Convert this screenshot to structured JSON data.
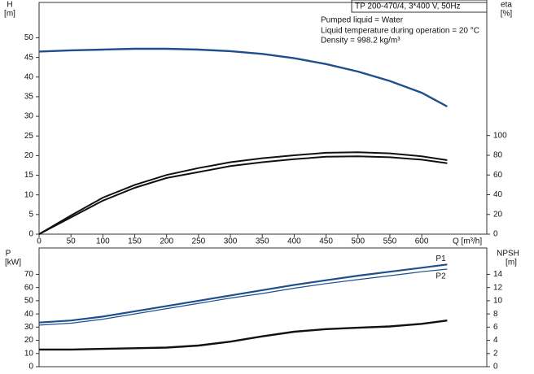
{
  "chart_data": [
    {
      "type": "line",
      "title": "TP 200-470/4, 3*400 V, 50Hz",
      "annotations": [
        "Pumped liquid = Water",
        "Liquid temperature during operation = 20 °C",
        "Density = 998.2 kg/m³"
      ],
      "ylabel": [
        "H",
        "[m]"
      ],
      "y2label": [
        "eta",
        "[%]"
      ],
      "xlabel": "Q [m³/h]",
      "x": [
        0,
        50,
        100,
        150,
        200,
        250,
        300,
        350,
        400,
        450,
        500,
        550,
        600,
        640
      ],
      "xlim": [
        0,
        702
      ],
      "xticks": [
        0,
        50,
        100,
        150,
        200,
        250,
        300,
        350,
        400,
        450,
        500,
        550,
        600
      ],
      "ylim": [
        0,
        59
      ],
      "yticks": [
        0,
        5,
        10,
        15,
        20,
        25,
        30,
        35,
        40,
        45,
        50
      ],
      "y2lim": [
        0,
        235
      ],
      "y2ticks": [
        0,
        20,
        40,
        60,
        80,
        100
      ],
      "grid": false,
      "series": [
        {
          "color": "#1f4e8c",
          "values": [
            46.5,
            46.8,
            47.0,
            47.2,
            47.2,
            47.0,
            46.6,
            45.9,
            44.8,
            43.3,
            41.4,
            39.0,
            36.0,
            32.5
          ]
        },
        {
          "color": "#111111",
          "axis": "y2",
          "values": [
            0,
            19,
            37,
            50,
            60,
            67,
            73,
            77,
            80,
            82.5,
            83,
            82,
            79,
            75
          ]
        },
        {
          "color": "#111111",
          "axis": "y2",
          "values": [
            0,
            17,
            34,
            47,
            57,
            63,
            69,
            73,
            76,
            78.5,
            79,
            78,
            75.5,
            72
          ]
        }
      ]
    },
    {
      "type": "line",
      "ylabel": [
        "P",
        "[kW]"
      ],
      "y2label": [
        "NPSH",
        "[m]"
      ],
      "x": [
        0,
        50,
        100,
        150,
        200,
        250,
        300,
        350,
        400,
        450,
        500,
        550,
        600,
        640
      ],
      "xlim": [
        0,
        702
      ],
      "ylim": [
        0,
        90
      ],
      "yticks": [
        0,
        10,
        20,
        30,
        40,
        50,
        60,
        70
      ],
      "y2lim": [
        0,
        18
      ],
      "y2ticks": [
        0,
        2,
        4,
        6,
        8,
        10,
        12,
        14
      ],
      "grid": false,
      "series": [
        {
          "name": "P1",
          "color": "#1f4e8c",
          "values": [
            33.5,
            35,
            38,
            42,
            46,
            50,
            54,
            58,
            62,
            65.5,
            69,
            72,
            75,
            77.5
          ]
        },
        {
          "name": "P2",
          "color": "#1f4e8c",
          "values": [
            31.5,
            33,
            36,
            40,
            44,
            48,
            52,
            55.5,
            59.5,
            63,
            66,
            69,
            72,
            74
          ]
        },
        {
          "color": "#111111",
          "axis": "y2",
          "values": [
            2.6,
            2.6,
            2.7,
            2.8,
            2.9,
            3.2,
            3.8,
            4.6,
            5.3,
            5.7,
            5.9,
            6.1,
            6.5,
            7.0
          ]
        }
      ]
    }
  ]
}
